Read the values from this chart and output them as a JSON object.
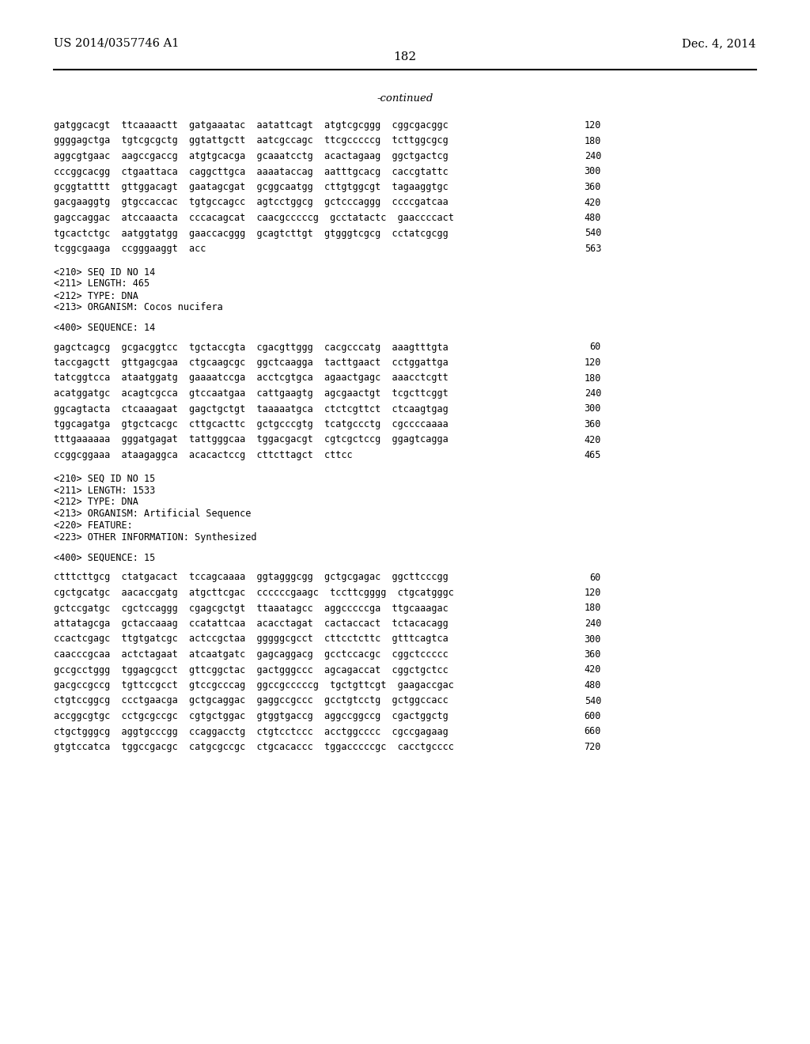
{
  "background_color": "#ffffff",
  "header_left": "US 2014/0357746 A1",
  "header_right": "Dec. 4, 2014",
  "page_number": "182",
  "continued_text": "-continued",
  "lines": [
    {
      "text": "gatggcacgt  ttcaaaactt  gatgaaatac  aatattcagt  atgtcgcggg  cggcgacggc",
      "number": "120"
    },
    {
      "text": "ggggagctga  tgtcgcgctg  ggtattgctt  aatcgccagc  ttcgcccccg  tcttggcgcg",
      "number": "180"
    },
    {
      "text": "aggcgtgaac  aagccgaccg  atgtgcacga  gcaaatcctg  acactagaag  ggctgactcg",
      "number": "240"
    },
    {
      "text": "cccggcacgg  ctgaattaca  caggcttgca  aaaataccag  aatttgcacg  caccgtattc",
      "number": "300"
    },
    {
      "text": "gcggtatttt  gttggacagt  gaatagcgat  gcggcaatgg  cttgtggcgt  tagaaggtgc",
      "number": "360"
    },
    {
      "text": "gacgaaggtg  gtgccaccac  tgtgccagcc  agtcctggcg  gctcccaggg  ccccgatcaa",
      "number": "420"
    },
    {
      "text": "gagccaggac  atccaaacta  cccacagcat  caacgcccccg  gcctatactc  gaaccccact",
      "number": "480"
    },
    {
      "text": "tgcactctgc  aatggtatgg  gaaccacggg  gcagtcttgt  gtgggtcgcg  cctatcgcgg",
      "number": "540"
    },
    {
      "text": "tcggcgaaga  ccgggaaggt  acc",
      "number": "563"
    },
    {
      "text": "",
      "number": ""
    },
    {
      "text": "<210> SEQ ID NO 14",
      "number": ""
    },
    {
      "text": "<211> LENGTH: 465",
      "number": ""
    },
    {
      "text": "<212> TYPE: DNA",
      "number": ""
    },
    {
      "text": "<213> ORGANISM: Cocos nucifera",
      "number": ""
    },
    {
      "text": "",
      "number": ""
    },
    {
      "text": "<400> SEQUENCE: 14",
      "number": ""
    },
    {
      "text": "",
      "number": ""
    },
    {
      "text": "gagctcagcg  gcgacggtcc  tgctaccgta  cgacgttggg  cacgcccatg  aaagtttgta",
      "number": "60"
    },
    {
      "text": "taccgagctt  gttgagcgaa  ctgcaagcgc  ggctcaagga  tacttgaact  cctggattga",
      "number": "120"
    },
    {
      "text": "tatcggtcca  ataatggatg  gaaaatccga  acctcgtgca  agaactgagc  aaacctcgtt",
      "number": "180"
    },
    {
      "text": "acatggatgc  acagtcgcca  gtccaatgaa  cattgaagtg  agcgaactgt  tcgcttcggt",
      "number": "240"
    },
    {
      "text": "ggcagtacta  ctcaaagaat  gagctgctgt  taaaaatgca  ctctcgttct  ctcaagtgag",
      "number": "300"
    },
    {
      "text": "tggcagatga  gtgctcacgc  cttgcacttc  gctgcccgtg  tcatgccctg  cgccccaaaa",
      "number": "360"
    },
    {
      "text": "tttgaaaaaa  gggatgagat  tattgggcaa  tggacgacgt  cgtcgctccg  ggagtcagga",
      "number": "420"
    },
    {
      "text": "ccggcggaaa  ataagaggca  acacactccg  cttcttagct  cttcc",
      "number": "465"
    },
    {
      "text": "",
      "number": ""
    },
    {
      "text": "<210> SEQ ID NO 15",
      "number": ""
    },
    {
      "text": "<211> LENGTH: 1533",
      "number": ""
    },
    {
      "text": "<212> TYPE: DNA",
      "number": ""
    },
    {
      "text": "<213> ORGANISM: Artificial Sequence",
      "number": ""
    },
    {
      "text": "<220> FEATURE:",
      "number": ""
    },
    {
      "text": "<223> OTHER INFORMATION: Synthesized",
      "number": ""
    },
    {
      "text": "",
      "number": ""
    },
    {
      "text": "<400> SEQUENCE: 15",
      "number": ""
    },
    {
      "text": "",
      "number": ""
    },
    {
      "text": "ctttcttgcg  ctatgacact  tccagcaaaa  ggtagggcgg  gctgcgagac  ggcttcccgg",
      "number": "60"
    },
    {
      "text": "cgctgcatgc  aacaccgatg  atgcttcgac  ccccccgaagc  tccttcgggg  ctgcatgggc",
      "number": "120"
    },
    {
      "text": "gctccgatgc  cgctccaggg  cgagcgctgt  ttaaatagcc  aggcccccga  ttgcaaagac",
      "number": "180"
    },
    {
      "text": "attatagcga  gctaccaaag  ccatattcaa  acacctagat  cactaccact  tctacacagg",
      "number": "240"
    },
    {
      "text": "ccactcgagc  ttgtgatcgc  actccgctaa  gggggcgcct  cttcctcttc  gtttcagtca",
      "number": "300"
    },
    {
      "text": "caacccgcaa  actctagaat  atcaatgatc  gagcaggacg  gcctccacgc  cggctccccc",
      "number": "360"
    },
    {
      "text": "gccgcctggg  tggagcgcct  gttcggctac  gactgggccc  agcagaccat  cggctgctcc",
      "number": "420"
    },
    {
      "text": "gacgccgccg  tgttccgcct  gtccgcccag  ggccgcccccg  tgctgttcgt  gaagaccgac",
      "number": "480"
    },
    {
      "text": "ctgtccggcg  ccctgaacga  gctgcaggac  gaggccgccc  gcctgtcctg  gctggccacc",
      "number": "540"
    },
    {
      "text": "accggcgtgc  cctgcgccgc  cgtgctggac  gtggtgaccg  aggccggccg  cgactggctg",
      "number": "600"
    },
    {
      "text": "ctgctgggcg  aggtgcccgg  ccaggacctg  ctgtcctccc  acctggcccc  cgccgagaag",
      "number": "660"
    },
    {
      "text": "gtgtccatca  tggccgacgc  catgcgccgc  ctgcacaccc  tggacccccgc  cacctgcccc",
      "number": "720"
    }
  ]
}
